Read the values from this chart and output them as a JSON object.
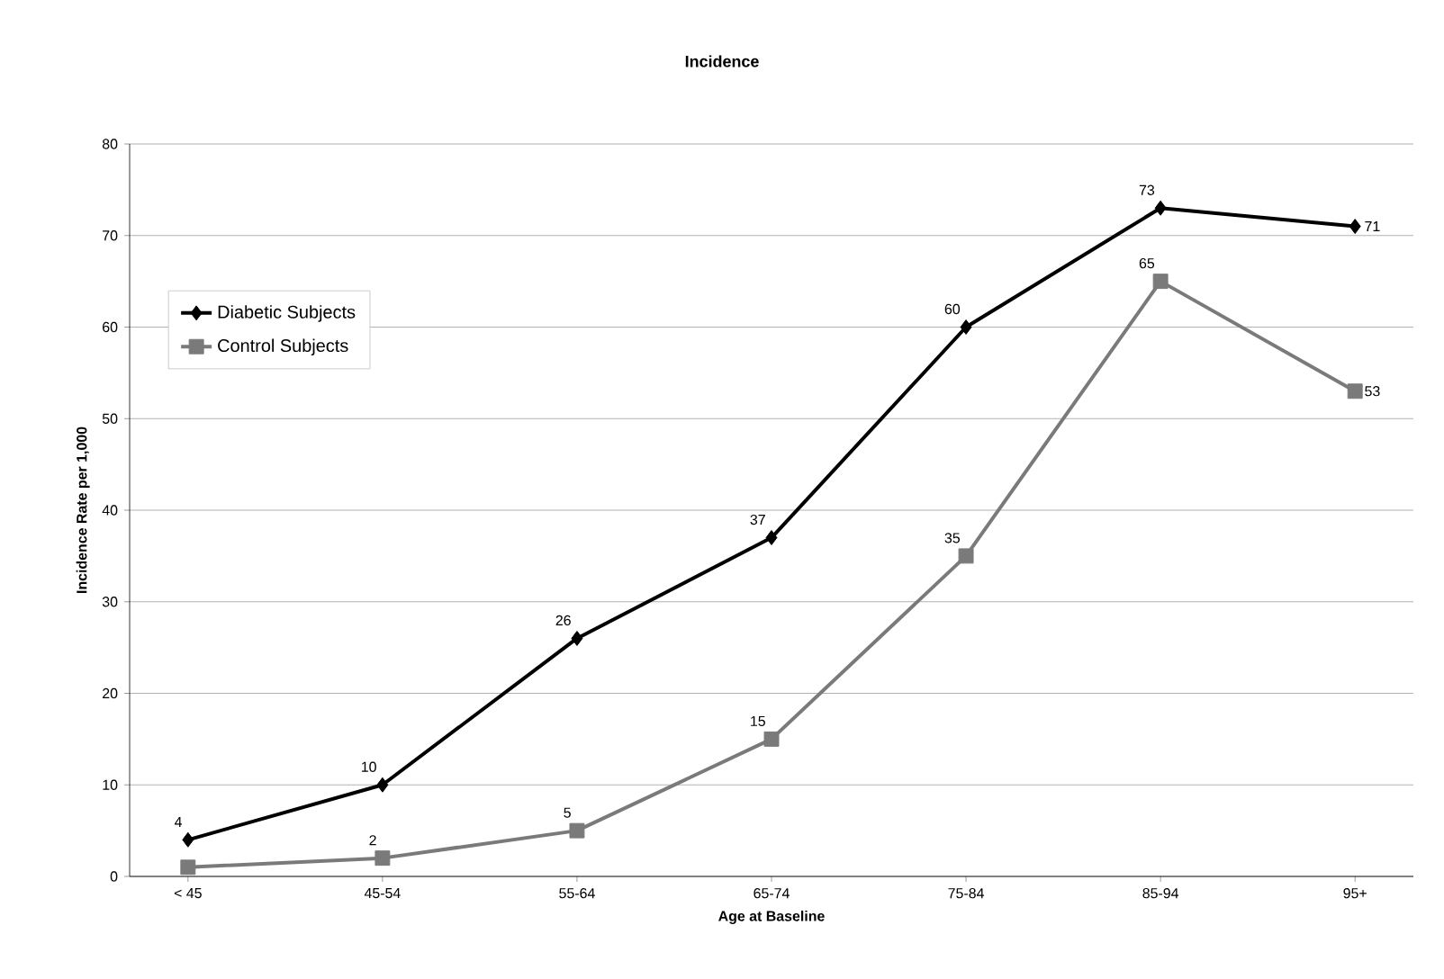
{
  "chart_data": {
    "type": "line",
    "title": "Incidence",
    "xlabel": "Age at Baseline",
    "ylabel": "Incidence Rate per 1,000",
    "categories": [
      "< 45",
      "45-54",
      "55-64",
      "65-74",
      "75-84",
      "85-94",
      "95+"
    ],
    "series": [
      {
        "name": "Diabetic Subjects",
        "color": "#000000",
        "marker": "diamond",
        "values": [
          4,
          10,
          26,
          37,
          60,
          73,
          71
        ],
        "value_labels": [
          "4",
          "10",
          "26",
          "37",
          "60",
          "73",
          "71"
        ]
      },
      {
        "name": "Control Subjects",
        "color": "#7a7a7a",
        "marker": "square",
        "values": [
          1,
          2,
          5,
          15,
          35,
          65,
          53
        ],
        "value_labels": [
          null,
          "2",
          "5",
          "15",
          "35",
          "65",
          "53"
        ]
      }
    ],
    "ylim": [
      0,
      80
    ],
    "yticks": [
      0,
      10,
      20,
      30,
      40,
      50,
      60,
      70,
      80
    ],
    "grid": "y",
    "legend": "top left",
    "line_style": "solid"
  }
}
